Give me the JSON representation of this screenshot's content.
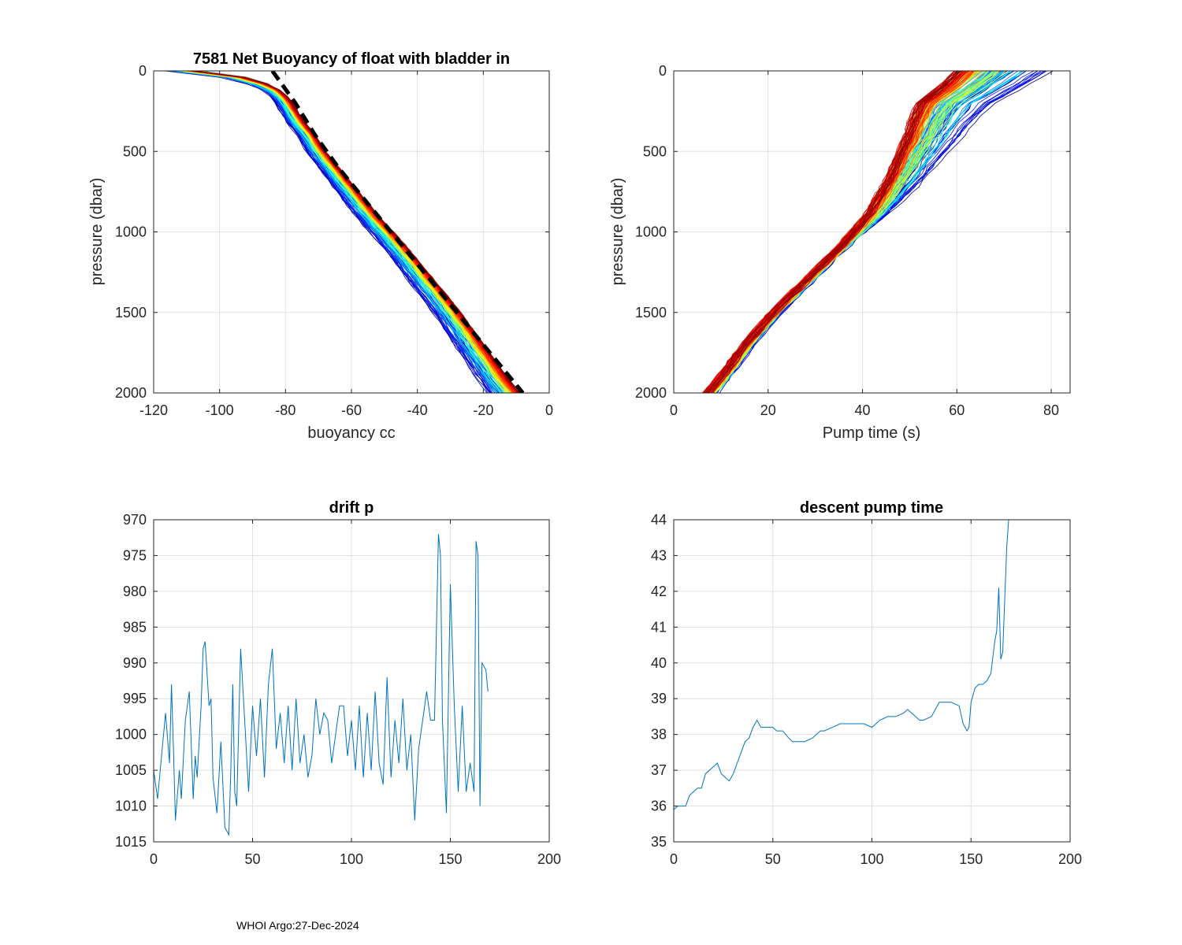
{
  "footer": "WHOI Argo:27-Dec-2024",
  "chart_data": [
    {
      "id": "buoyancy",
      "type": "line",
      "title": "7581 Net Buoyancy of float with bladder in",
      "xlabel": "buoyancy cc",
      "ylabel": "pressure (dbar)",
      "xlim": [
        -120,
        0
      ],
      "ylim": [
        0,
        2000
      ],
      "y_reversed": true,
      "xticks": [
        -120,
        -100,
        -80,
        -60,
        -40,
        -20,
        0
      ],
      "yticks": [
        0,
        500,
        1000,
        1500,
        2000
      ],
      "grid": true,
      "series_count": 170,
      "colormap": "jet (blue = early cycles, red = late cycles)",
      "representative_profile": {
        "pressure": [
          0,
          20,
          50,
          100,
          150,
          200,
          300,
          400,
          500,
          700,
          900,
          1100,
          1300,
          1500,
          1700,
          1900,
          2000
        ],
        "buoyancy": [
          -110,
          -100,
          -92,
          -85,
          -82,
          -80,
          -77,
          -73,
          -70,
          -62,
          -54,
          -45,
          -37,
          -29,
          -22,
          -15,
          -11
        ]
      },
      "reference_line": {
        "style": "black dashed",
        "pressure": [
          0,
          200,
          400,
          600,
          800,
          1000,
          1200,
          1400,
          1600,
          1800,
          2000
        ],
        "buoyancy": [
          -84,
          -77,
          -71,
          -64,
          -56,
          -48,
          -40,
          -32,
          -24,
          -16,
          -8
        ]
      }
    },
    {
      "id": "pump",
      "type": "line",
      "title": "",
      "xlabel": "Pump time (s)",
      "ylabel": "pressure (dbar)",
      "xlim": [
        0,
        84
      ],
      "ylim": [
        0,
        2000
      ],
      "y_reversed": true,
      "xticks": [
        0,
        20,
        40,
        60,
        80
      ],
      "yticks": [
        0,
        500,
        1000,
        1500,
        2000
      ],
      "grid": true,
      "series_count": 170,
      "colormap": "jet (blue = early cycles, red = late cycles)",
      "representative_profile": {
        "pressure": [
          0,
          100,
          200,
          300,
          500,
          700,
          900,
          1100,
          1300,
          1500,
          1700,
          1900,
          2000
        ],
        "pump_time": [
          62,
          58,
          53,
          51,
          48,
          45,
          41,
          35,
          28,
          21,
          15,
          10,
          7
        ]
      }
    },
    {
      "id": "drift",
      "type": "line",
      "title": "drift p",
      "xlabel": "",
      "ylabel": "",
      "xlim": [
        0,
        200
      ],
      "ylim": [
        970,
        1015
      ],
      "y_reversed": true,
      "xticks": [
        0,
        50,
        100,
        150,
        200
      ],
      "yticks": [
        970,
        975,
        980,
        985,
        990,
        995,
        1000,
        1005,
        1010,
        1015
      ],
      "grid": true,
      "color": "#0072bd",
      "x": [
        0,
        2,
        4,
        6,
        8,
        9,
        10,
        11,
        13,
        14,
        16,
        18,
        20,
        21,
        22,
        24,
        25,
        26,
        28,
        29,
        30,
        32,
        34,
        36,
        38,
        39,
        40,
        41,
        42,
        44,
        46,
        48,
        50,
        52,
        54,
        56,
        58,
        60,
        62,
        64,
        66,
        68,
        70,
        72,
        74,
        76,
        78,
        80,
        82,
        84,
        86,
        88,
        90,
        92,
        94,
        96,
        98,
        100,
        102,
        104,
        106,
        108,
        110,
        112,
        114,
        116,
        118,
        120,
        122,
        124,
        126,
        128,
        130,
        132,
        134,
        136,
        138,
        140,
        142,
        144,
        145,
        146,
        148,
        150,
        152,
        154,
        156,
        158,
        160,
        162,
        163,
        164,
        165,
        166,
        168,
        169
      ],
      "y": [
        1005,
        1009,
        1003,
        997,
        1004,
        993,
        1002,
        1012,
        1005,
        1009,
        998,
        994,
        1009,
        1003,
        1006,
        996,
        988,
        987,
        996,
        995,
        1006,
        1011,
        1001,
        1013,
        1014,
        1005,
        993,
        1008,
        1010,
        988,
        998,
        1008,
        996,
        1003,
        995,
        1006,
        993,
        988,
        1002,
        997,
        1004,
        996,
        1005,
        995,
        1004,
        1000,
        1006,
        1003,
        995,
        1000,
        997,
        998,
        1004,
        1000,
        996,
        996,
        1003,
        998,
        1005,
        996,
        1006,
        997,
        1005,
        994,
        1004,
        1007,
        992,
        1006,
        998,
        1004,
        995,
        1005,
        1000,
        1012,
        1002,
        998,
        994,
        998,
        998,
        972,
        975,
        998,
        1011,
        979,
        996,
        1008,
        996,
        1008,
        1004,
        1008,
        973,
        975,
        1010,
        990,
        991,
        994
      ]
    },
    {
      "id": "descent",
      "type": "line",
      "title": "descent pump time",
      "xlabel": "",
      "ylabel": "",
      "xlim": [
        0,
        200
      ],
      "ylim": [
        35,
        44
      ],
      "y_reversed": false,
      "xticks": [
        0,
        50,
        100,
        150,
        200
      ],
      "yticks": [
        35,
        36,
        37,
        38,
        39,
        40,
        41,
        42,
        43,
        44
      ],
      "grid": true,
      "color": "#0072bd",
      "x": [
        0,
        2,
        4,
        6,
        8,
        10,
        12,
        14,
        16,
        18,
        20,
        22,
        24,
        26,
        28,
        30,
        32,
        34,
        36,
        38,
        40,
        42,
        43,
        44,
        46,
        48,
        50,
        52,
        55,
        58,
        60,
        62,
        64,
        66,
        70,
        74,
        76,
        80,
        84,
        88,
        92,
        96,
        100,
        104,
        108,
        112,
        116,
        118,
        120,
        124,
        126,
        130,
        134,
        136,
        140,
        144,
        146,
        148,
        149,
        150,
        152,
        154,
        156,
        158,
        160,
        162,
        163,
        164,
        165,
        166,
        168,
        169
      ],
      "y": [
        35.9,
        36.0,
        36.0,
        36.0,
        36.3,
        36.4,
        36.5,
        36.5,
        36.9,
        37.0,
        37.1,
        37.2,
        36.9,
        36.8,
        36.7,
        36.9,
        37.2,
        37.5,
        37.8,
        37.9,
        38.2,
        38.4,
        38.3,
        38.2,
        38.2,
        38.2,
        38.2,
        38.1,
        38.1,
        37.9,
        37.8,
        37.8,
        37.8,
        37.8,
        37.9,
        38.1,
        38.1,
        38.2,
        38.3,
        38.3,
        38.3,
        38.3,
        38.2,
        38.4,
        38.5,
        38.5,
        38.6,
        38.7,
        38.6,
        38.4,
        38.4,
        38.5,
        38.9,
        38.9,
        38.9,
        38.8,
        38.3,
        38.1,
        38.2,
        38.9,
        39.3,
        39.4,
        39.4,
        39.5,
        39.7,
        40.6,
        40.9,
        42.1,
        40.1,
        40.3,
        43.2,
        44.0
      ]
    }
  ]
}
